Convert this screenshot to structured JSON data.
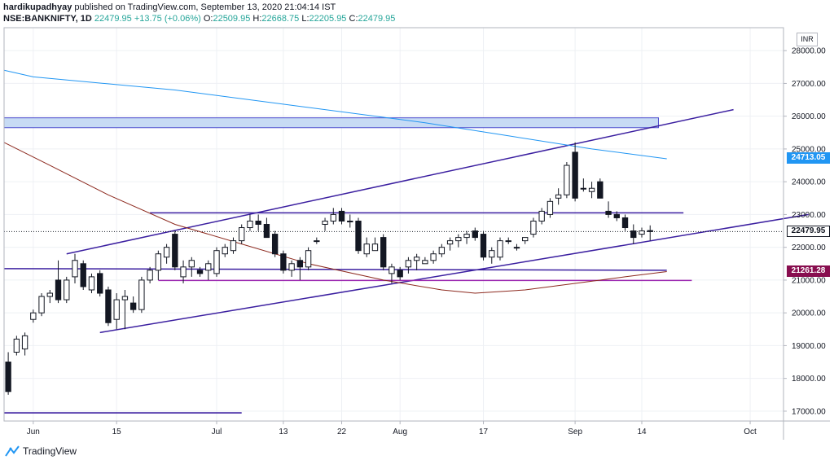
{
  "header": {
    "line1_user": "hardikupadhyay",
    "line1_rest": "published on TradingView.com, September 13, 2020 21:04:14 IST",
    "symbol": "NSE:BANKNIFTY, 1D",
    "last": "22479.95",
    "change": "+13.75 (+0.06%)",
    "o_label": "O:",
    "o_value": "22509.95",
    "h_label": "H:",
    "h_value": "22668.75",
    "l_label": "L:",
    "l_value": "22205.95",
    "c_label": "C:",
    "c_value": "22479.95"
  },
  "currency": "INR",
  "footer": {
    "brand": "TradingView"
  },
  "price_tags": [
    {
      "text": "24713.05",
      "value": 24713.05,
      "color": "#2196f3"
    },
    {
      "text": "22479.95",
      "value": 22479.95,
      "color": "#ffffff",
      "textColor": "#131722",
      "border": "#131722"
    },
    {
      "text": "21261.28",
      "value": 21261.28,
      "color": "#880e4f"
    }
  ],
  "chart_data": {
    "type": "candlestick",
    "symbol": "NSE:BANKNIFTY",
    "interval": "1D",
    "ylim": [
      16700,
      28700
    ],
    "y_ticks": [
      17000,
      18000,
      19000,
      20000,
      21000,
      22000,
      23000,
      24000,
      25000,
      26000,
      27000,
      28000
    ],
    "y_tick_labels": [
      "17000.00",
      "18000.00",
      "19000.00",
      "20000.00",
      "21000.00",
      "22000.00",
      "23000.00",
      "24000.00",
      "25000.00",
      "26000.00",
      "27000.00",
      "28000.00"
    ],
    "x_ticks": [
      {
        "label": "Jun",
        "index": 3
      },
      {
        "label": "15",
        "index": 13
      },
      {
        "label": "Jul",
        "index": 25
      },
      {
        "label": "13",
        "index": 33
      },
      {
        "label": "22",
        "index": 40
      },
      {
        "label": "Aug",
        "index": 47
      },
      {
        "label": "17",
        "index": 57
      },
      {
        "label": "Sep",
        "index": 68
      },
      {
        "label": "14",
        "index": 76
      },
      {
        "label": "Oct",
        "index": 89
      }
    ],
    "x_range": [
      -0.5,
      93
    ],
    "candles": [
      [
        18500,
        18800,
        17500,
        17600
      ],
      [
        18800,
        19300,
        18700,
        19200
      ],
      [
        18900,
        19400,
        18700,
        19300
      ],
      [
        19800,
        20100,
        19700,
        20000
      ],
      [
        20000,
        20600,
        19900,
        20500
      ],
      [
        20500,
        20700,
        20300,
        20600
      ],
      [
        21000,
        21600,
        20300,
        20400
      ],
      [
        20400,
        21100,
        20300,
        21000
      ],
      [
        21100,
        21800,
        20900,
        21600
      ],
      [
        21500,
        21600,
        20700,
        20800
      ],
      [
        20700,
        21200,
        20600,
        21100
      ],
      [
        21200,
        21300,
        20500,
        20600
      ],
      [
        20700,
        20800,
        19600,
        19700
      ],
      [
        19800,
        20600,
        19500,
        20400
      ],
      [
        20400,
        20700,
        19500,
        20500
      ],
      [
        20300,
        20500,
        20000,
        20100
      ],
      [
        20100,
        21100,
        20000,
        21000
      ],
      [
        21000,
        21400,
        20900,
        21300
      ],
      [
        21300,
        21900,
        21000,
        21800
      ],
      [
        21700,
        22100,
        21500,
        22000
      ],
      [
        22400,
        22500,
        21300,
        21400
      ],
      [
        21100,
        21600,
        20900,
        21400
      ],
      [
        21400,
        21700,
        21100,
        21600
      ],
      [
        21300,
        21400,
        21100,
        21200
      ],
      [
        21300,
        21600,
        21000,
        21500
      ],
      [
        21200,
        22000,
        21100,
        21900
      ],
      [
        21800,
        22100,
        21700,
        22000
      ],
      [
        21900,
        22300,
        21800,
        22200
      ],
      [
        22200,
        22700,
        22100,
        22600
      ],
      [
        22600,
        23000,
        22500,
        22800
      ],
      [
        22800,
        23000,
        22500,
        22700
      ],
      [
        22700,
        22900,
        22300,
        22300
      ],
      [
        22400,
        22500,
        21700,
        21800
      ],
      [
        21800,
        21900,
        21200,
        21300
      ],
      [
        21300,
        21600,
        21100,
        21500
      ],
      [
        21600,
        21700,
        21000,
        21400
      ],
      [
        21400,
        22000,
        21300,
        21900
      ],
      [
        22200,
        22300,
        22100,
        22200
      ],
      [
        22700,
        22900,
        22500,
        22800
      ],
      [
        22800,
        23200,
        22700,
        23000
      ],
      [
        23100,
        23200,
        22700,
        22800
      ],
      [
        22800,
        23000,
        22600,
        22800
      ],
      [
        22800,
        22900,
        21800,
        21900
      ],
      [
        21800,
        22300,
        21700,
        22100
      ],
      [
        21900,
        22300,
        21900,
        22100
      ],
      [
        22300,
        22400,
        21300,
        21400
      ],
      [
        21200,
        21500,
        20900,
        21400
      ],
      [
        21300,
        21400,
        21000,
        21100
      ],
      [
        21400,
        21700,
        21200,
        21600
      ],
      [
        21600,
        21800,
        21300,
        21700
      ],
      [
        21500,
        21700,
        21500,
        21600
      ],
      [
        21600,
        21900,
        21500,
        21800
      ],
      [
        21800,
        22100,
        21700,
        22000
      ],
      [
        22100,
        22300,
        21900,
        22200
      ],
      [
        22200,
        22400,
        22000,
        22300
      ],
      [
        22300,
        22500,
        22100,
        22400
      ],
      [
        22500,
        22600,
        22200,
        22300
      ],
      [
        22400,
        22500,
        21600,
        21700
      ],
      [
        21700,
        22000,
        21500,
        21900
      ],
      [
        21700,
        22300,
        21600,
        22200
      ],
      [
        22200,
        22300,
        22100,
        22200
      ],
      [
        22000,
        22100,
        21900,
        22000
      ],
      [
        22200,
        22300,
        22100,
        22300
      ],
      [
        22400,
        22900,
        22300,
        22800
      ],
      [
        22800,
        23200,
        22700,
        23100
      ],
      [
        23000,
        23500,
        22900,
        23400
      ],
      [
        23500,
        23800,
        23300,
        23600
      ],
      [
        23600,
        24600,
        23500,
        24500
      ],
      [
        24900,
        25200,
        23400,
        23500
      ],
      [
        23800,
        24100,
        23700,
        23800
      ],
      [
        23700,
        24000,
        23500,
        23800
      ],
      [
        24000,
        24100,
        23500,
        23500
      ],
      [
        23100,
        23400,
        22900,
        23000
      ],
      [
        23000,
        23100,
        22800,
        22900
      ],
      [
        22900,
        23000,
        22500,
        22600
      ],
      [
        22500,
        22700,
        22100,
        22300
      ],
      [
        22400,
        22600,
        22300,
        22500
      ],
      [
        22510,
        22669,
        22206,
        22480
      ]
    ],
    "moving_averages": [
      {
        "color": "#2196f3",
        "points": [
          [
            -0.5,
            27400
          ],
          [
            3,
            27200
          ],
          [
            20,
            26800
          ],
          [
            35,
            26300
          ],
          [
            50,
            25800
          ],
          [
            60,
            25400
          ],
          [
            70,
            25000
          ],
          [
            79,
            24700
          ]
        ]
      },
      {
        "color": "#8d2a1f",
        "points": [
          [
            -0.5,
            25200
          ],
          [
            5,
            24500
          ],
          [
            12,
            23600
          ],
          [
            20,
            22700
          ],
          [
            28,
            22100
          ],
          [
            36,
            21500
          ],
          [
            45,
            21000
          ],
          [
            52,
            20700
          ],
          [
            56,
            20600
          ],
          [
            62,
            20700
          ],
          [
            68,
            20900
          ],
          [
            74,
            21100
          ],
          [
            79,
            21260
          ]
        ]
      }
    ],
    "annotations": [
      {
        "kind": "hband",
        "y1": 25650,
        "y2": 25950,
        "x1": -0.5,
        "x2": 78,
        "fill": "#c7dbf4",
        "stroke": "#4a4acd"
      },
      {
        "kind": "line",
        "x1": 7,
        "y1": 21800,
        "x2": 87,
        "y2": 26200,
        "color": "#3b1fa0"
      },
      {
        "kind": "line",
        "x1": 11,
        "y1": 19400,
        "x2": 96,
        "y2": 23000,
        "color": "#3b1fa0"
      },
      {
        "kind": "line",
        "x1": 17,
        "y1": 23050,
        "x2": 81,
        "y2": 23050,
        "color": "#3b1fa0"
      },
      {
        "kind": "line",
        "x1": -0.5,
        "y1": 21350,
        "x2": 79,
        "y2": 21300,
        "color": "#3b1fa0"
      },
      {
        "kind": "line",
        "x1": 18,
        "y1": 20990,
        "x2": 82,
        "y2": 20990,
        "color": "#9c27b0"
      },
      {
        "kind": "line",
        "x1": -0.5,
        "y1": 16950,
        "x2": 28,
        "y2": 16950,
        "color": "#3b1fa0"
      }
    ],
    "last_price": 22479.95,
    "grid": true
  }
}
